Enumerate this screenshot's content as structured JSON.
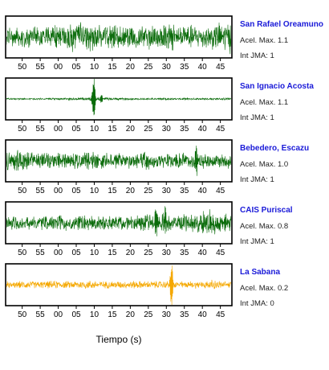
{
  "chart_data": {
    "type": "line",
    "xlabel": "Tiempo (s)",
    "x_tick_labels": [
      "50",
      "55",
      "00",
      "05",
      "10",
      "15",
      "20",
      "25",
      "30",
      "35",
      "40",
      "45"
    ],
    "panels": [
      {
        "station": "San Rafael Oreamuno",
        "acel": "Acel. Max. 1.1",
        "int": "Int JMA: 1",
        "color": "#0a6b0a",
        "amplitude": 0.75,
        "envelope": [
          0.7,
          0.6,
          0.65,
          0.6,
          0.7,
          0.75,
          0.8,
          0.9,
          0.95,
          0.85,
          0.75,
          0.7,
          0.75,
          0.8,
          0.7,
          0.8,
          0.9,
          0.85,
          0.8,
          0.75,
          0.7,
          0.8,
          0.95,
          1.0
        ],
        "spikes": []
      },
      {
        "station": "San Ignacio Acosta",
        "acel": "Acel. Max. 1.1",
        "int": "Int JMA: 1",
        "color": "#0a6b0a",
        "amplitude": 0.08,
        "envelope": [
          0.6,
          0.5,
          0.5,
          0.6,
          0.5,
          0.6,
          0.7,
          0.8,
          1.0,
          1.2,
          0.9,
          0.7,
          0.6,
          0.6,
          0.5,
          0.6,
          0.6,
          0.5,
          0.6,
          0.5,
          0.6,
          0.6,
          0.7,
          0.8
        ],
        "spikes": [
          {
            "t": 20.0,
            "amp": 1.0
          },
          {
            "t": 19.6,
            "amp": 0.55
          },
          {
            "t": 22.0,
            "amp": 0.25
          }
        ]
      },
      {
        "station": "Bebedero, Escazu",
        "acel": "Acel. Max. 1.0",
        "int": "Int JMA: 1",
        "color": "#0a6b0a",
        "amplitude": 0.6,
        "envelope": [
          1.0,
          0.95,
          0.85,
          0.75,
          0.7,
          0.7,
          0.65,
          0.7,
          0.7,
          0.65,
          0.6,
          0.65,
          0.6,
          0.65,
          0.7,
          0.6,
          0.55,
          0.6,
          0.65,
          0.6,
          0.6,
          0.55,
          0.6,
          0.65
        ],
        "spikes": [
          {
            "t": 48.4,
            "amp": 0.95
          }
        ]
      },
      {
        "station": "CAIS Puriscal",
        "acel": "Acel. Max. 0.8",
        "int": "Int JMA: 1",
        "color": "#0a6b0a",
        "amplitude": 0.55,
        "envelope": [
          0.7,
          0.65,
          0.6,
          0.6,
          0.65,
          0.6,
          0.7,
          0.7,
          0.65,
          0.6,
          0.6,
          0.65,
          0.6,
          0.6,
          0.7,
          0.7,
          0.75,
          0.7,
          0.8,
          0.85,
          1.05,
          1.1,
          0.8,
          0.7
        ],
        "spikes": [
          {
            "t": 37.2,
            "amp": 0.9
          },
          {
            "t": 39.6,
            "amp": 0.8
          }
        ]
      },
      {
        "station": "La Sabana",
        "acel": "Acel. Max. 0.2",
        "int": "Int JMA: 0",
        "color": "#f5a800",
        "amplitude": 0.28,
        "envelope": [
          0.6,
          0.55,
          0.65,
          0.6,
          0.6,
          0.7,
          0.6,
          0.65,
          0.75,
          0.7,
          0.6,
          0.65,
          0.6,
          0.7,
          0.6,
          0.65,
          0.6,
          0.65,
          0.6,
          0.6,
          0.65,
          0.8,
          0.6,
          0.6
        ],
        "spikes": [
          {
            "t": 41.6,
            "amp": 0.95
          },
          {
            "t": 41.2,
            "amp": 0.6
          }
        ]
      }
    ]
  }
}
